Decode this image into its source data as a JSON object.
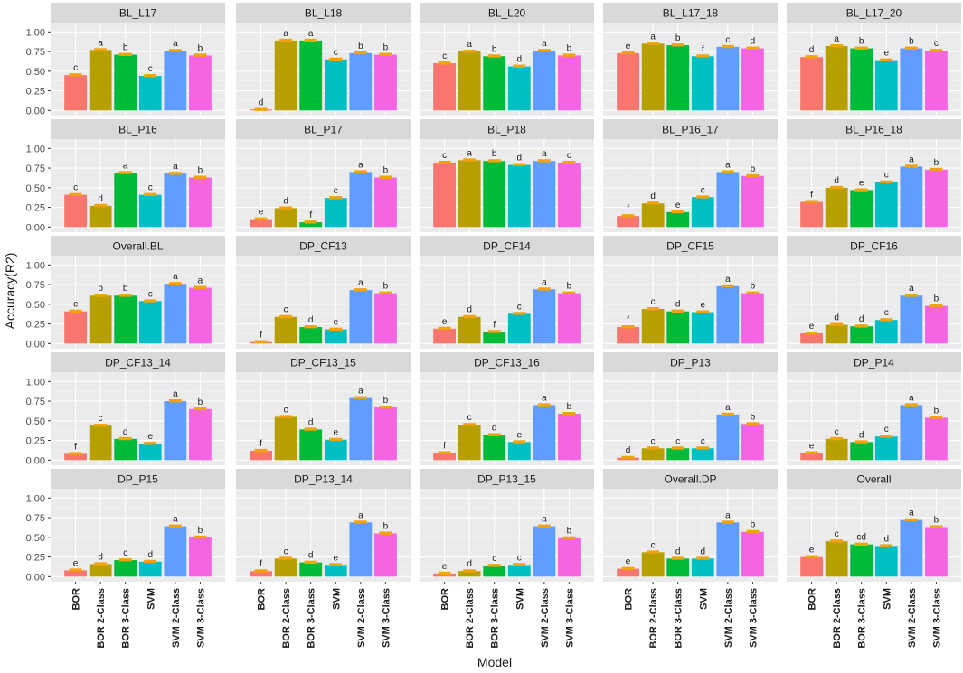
{
  "chart_data": {
    "type": "bar",
    "xlabel": "Model",
    "ylabel": "Accuracy(R2)",
    "ylim": [
      0,
      1
    ],
    "yticks": [
      "0.00",
      "0.25",
      "0.50",
      "0.75",
      "1.00"
    ],
    "categories": [
      "BOR",
      "BOR 2-Class",
      "BOR 3-Class",
      "SVM",
      "SVM 2-Class",
      "SVM 3-Class"
    ],
    "colors": [
      "#F8766D",
      "#B79F00",
      "#00BA38",
      "#00BFC4",
      "#619CFF",
      "#F564E3"
    ],
    "errorbar_color": "#F0A30A",
    "panels": [
      {
        "title": "BL_L17",
        "values": [
          0.45,
          0.77,
          0.71,
          0.44,
          0.76,
          0.7
        ],
        "letters": [
          "c",
          "a",
          "b",
          "c",
          "a",
          "b"
        ]
      },
      {
        "title": "BL_L18",
        "values": [
          0.01,
          0.89,
          0.89,
          0.65,
          0.73,
          0.71
        ],
        "letters": [
          "d",
          "a",
          "a",
          "c",
          "b",
          "b"
        ]
      },
      {
        "title": "BL_L20",
        "values": [
          0.6,
          0.75,
          0.69,
          0.56,
          0.76,
          0.7
        ],
        "letters": [
          "c",
          "a",
          "b",
          "d",
          "a",
          "b"
        ]
      },
      {
        "title": "BL_L17_18",
        "values": [
          0.73,
          0.85,
          0.83,
          0.69,
          0.81,
          0.79
        ],
        "letters": [
          "e",
          "a",
          "b",
          "f",
          "c",
          "d"
        ]
      },
      {
        "title": "BL_L17_20",
        "values": [
          0.68,
          0.82,
          0.79,
          0.64,
          0.79,
          0.76
        ],
        "letters": [
          "d",
          "a",
          "b",
          "e",
          "b",
          "c"
        ]
      },
      {
        "title": "BL_P16",
        "values": [
          0.41,
          0.27,
          0.69,
          0.41,
          0.68,
          0.63
        ],
        "letters": [
          "c",
          "d",
          "a",
          "c",
          "a",
          "b"
        ]
      },
      {
        "title": "BL_P17",
        "values": [
          0.1,
          0.24,
          0.06,
          0.37,
          0.7,
          0.63
        ],
        "letters": [
          "e",
          "d",
          "f",
          "c",
          "a",
          "b"
        ]
      },
      {
        "title": "BL_P18",
        "values": [
          0.82,
          0.85,
          0.84,
          0.79,
          0.84,
          0.82
        ],
        "letters": [
          "c",
          "a",
          "b",
          "d",
          "a",
          "c"
        ]
      },
      {
        "title": "BL_P16_17",
        "values": [
          0.14,
          0.3,
          0.19,
          0.38,
          0.7,
          0.65
        ],
        "letters": [
          "f",
          "d",
          "e",
          "c",
          "a",
          "b"
        ]
      },
      {
        "title": "BL_P16_18",
        "values": [
          0.32,
          0.5,
          0.47,
          0.57,
          0.77,
          0.73
        ],
        "letters": [
          "f",
          "d",
          "e",
          "c",
          "a",
          "b"
        ]
      },
      {
        "title": "Overall.BL",
        "values": [
          0.41,
          0.61,
          0.61,
          0.54,
          0.76,
          0.71
        ],
        "letters": [
          "c",
          "b",
          "b",
          "c",
          "a",
          "a"
        ]
      },
      {
        "title": "DP_CF13",
        "values": [
          0.02,
          0.34,
          0.21,
          0.18,
          0.68,
          0.64
        ],
        "letters": [
          "f",
          "c",
          "d",
          "e",
          "a",
          "b"
        ]
      },
      {
        "title": "DP_CF14",
        "values": [
          0.19,
          0.34,
          0.15,
          0.38,
          0.69,
          0.64
        ],
        "letters": [
          "e",
          "d",
          "f",
          "c",
          "a",
          "b"
        ]
      },
      {
        "title": "DP_CF15",
        "values": [
          0.21,
          0.44,
          0.41,
          0.4,
          0.73,
          0.64
        ],
        "letters": [
          "f",
          "c",
          "d",
          "e",
          "a",
          "b"
        ]
      },
      {
        "title": "DP_CF16",
        "values": [
          0.13,
          0.24,
          0.22,
          0.3,
          0.61,
          0.48
        ],
        "letters": [
          "e",
          "d",
          "d",
          "c",
          "a",
          "b"
        ]
      },
      {
        "title": "DP_CF13_14",
        "values": [
          0.08,
          0.44,
          0.27,
          0.21,
          0.75,
          0.65
        ],
        "letters": [
          "f",
          "c",
          "d",
          "e",
          "a",
          "b"
        ]
      },
      {
        "title": "DP_CF13_15",
        "values": [
          0.12,
          0.55,
          0.39,
          0.26,
          0.79,
          0.67
        ],
        "letters": [
          "f",
          "c",
          "d",
          "e",
          "a",
          "b"
        ]
      },
      {
        "title": "DP_CF13_16",
        "values": [
          0.09,
          0.45,
          0.32,
          0.23,
          0.7,
          0.59
        ],
        "letters": [
          "f",
          "c",
          "d",
          "e",
          "a",
          "b"
        ]
      },
      {
        "title": "DP_P13",
        "values": [
          0.03,
          0.15,
          0.15,
          0.15,
          0.58,
          0.46
        ],
        "letters": [
          "d",
          "c",
          "c",
          "c",
          "a",
          "b"
        ]
      },
      {
        "title": "DP_P14",
        "values": [
          0.09,
          0.27,
          0.23,
          0.3,
          0.7,
          0.54
        ],
        "letters": [
          "e",
          "c",
          "d",
          "c",
          "a",
          "b"
        ]
      },
      {
        "title": "DP_P15",
        "values": [
          0.08,
          0.16,
          0.21,
          0.19,
          0.64,
          0.5
        ],
        "letters": [
          "e",
          "d",
          "c",
          "d",
          "a",
          "b"
        ]
      },
      {
        "title": "DP_P13_14",
        "values": [
          0.07,
          0.23,
          0.18,
          0.15,
          0.69,
          0.55
        ],
        "letters": [
          "f",
          "c",
          "d",
          "e",
          "a",
          "b"
        ]
      },
      {
        "title": "DP_P13_15",
        "values": [
          0.04,
          0.07,
          0.14,
          0.15,
          0.64,
          0.49
        ],
        "letters": [
          "e",
          "d",
          "c",
          "c",
          "a",
          "b"
        ]
      },
      {
        "title": "Overall.DP",
        "values": [
          0.1,
          0.31,
          0.23,
          0.23,
          0.69,
          0.57
        ],
        "letters": [
          "e",
          "c",
          "d",
          "d",
          "a",
          "b"
        ]
      },
      {
        "title": "Overall",
        "values": [
          0.25,
          0.45,
          0.41,
          0.39,
          0.72,
          0.63
        ],
        "letters": [
          "e",
          "c",
          "cd",
          "d",
          "a",
          "b"
        ]
      }
    ]
  }
}
